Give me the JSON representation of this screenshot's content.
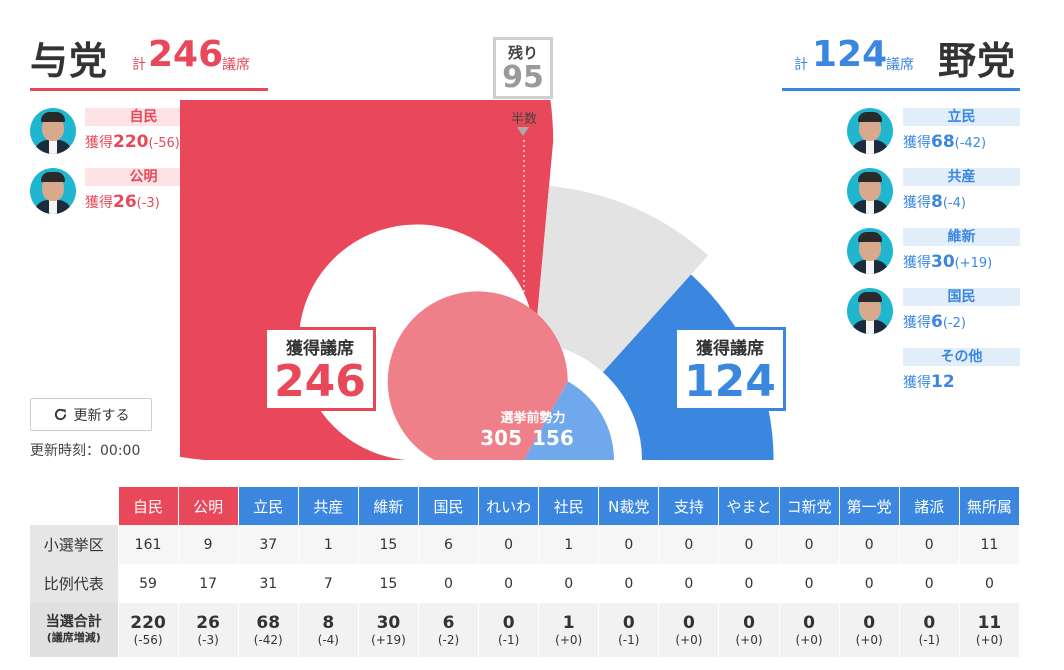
{
  "ruling": {
    "title": "与党",
    "kei": "計",
    "total": "246",
    "giseki": "議席",
    "parties": [
      {
        "name": "自民",
        "label": "獲得",
        "seats": "220",
        "diff": "(-56)"
      },
      {
        "name": "公明",
        "label": "獲得",
        "seats": "26",
        "diff": "(-3)"
      }
    ]
  },
  "opposition": {
    "title": "野党",
    "kei": "計",
    "total": "124",
    "giseki": "議席",
    "parties": [
      {
        "name": "立民",
        "label": "獲得",
        "seats": "68",
        "diff": "(-42)"
      },
      {
        "name": "共産",
        "label": "獲得",
        "seats": "8",
        "diff": "(-4)"
      },
      {
        "name": "維新",
        "label": "獲得",
        "seats": "30",
        "diff": "(+19)"
      },
      {
        "name": "国民",
        "label": "獲得",
        "seats": "6",
        "diff": "(-2)"
      },
      {
        "name": "その他",
        "label": "獲得",
        "seats": "12",
        "diff": ""
      }
    ]
  },
  "remaining": {
    "label": "残り",
    "value": "95"
  },
  "half_label": "半数",
  "seat_chart": {
    "total_seats": 465,
    "ruling_seats": 246,
    "opposition_seats": 124,
    "remaining_seats": 95,
    "ruling_color": "#e8485a",
    "opposition_color": "#3b87e0",
    "remaining_color": "#e3e3e3",
    "ruling_box": {
      "label": "獲得議席",
      "value": "246"
    },
    "opposition_box": {
      "label": "獲得議席",
      "value": "124"
    },
    "pre_election": {
      "label": "選挙前勢力",
      "ruling": "305",
      "opposition": "156"
    }
  },
  "update": {
    "button_label": "更新する",
    "time_label": "更新時刻：00:00"
  },
  "table": {
    "headers": [
      {
        "label": "自民",
        "side": "ruling"
      },
      {
        "label": "公明",
        "side": "ruling"
      },
      {
        "label": "立民",
        "side": "opposition"
      },
      {
        "label": "共産",
        "side": "opposition"
      },
      {
        "label": "維新",
        "side": "opposition"
      },
      {
        "label": "国民",
        "side": "opposition"
      },
      {
        "label": "れいわ",
        "side": "opposition"
      },
      {
        "label": "社民",
        "side": "opposition"
      },
      {
        "label": "N裁党",
        "side": "opposition"
      },
      {
        "label": "支持",
        "side": "opposition"
      },
      {
        "label": "やまと",
        "side": "opposition"
      },
      {
        "label": "コ新党",
        "side": "opposition"
      },
      {
        "label": "第一党",
        "side": "opposition"
      },
      {
        "label": "諸派",
        "side": "opposition"
      },
      {
        "label": "無所属",
        "side": "opposition"
      }
    ],
    "rows": [
      {
        "label": "小選挙区",
        "values": [
          "161",
          "9",
          "37",
          "1",
          "15",
          "6",
          "0",
          "1",
          "0",
          "0",
          "0",
          "0",
          "0",
          "0",
          "11"
        ]
      },
      {
        "label": "比例代表",
        "values": [
          "59",
          "17",
          "31",
          "7",
          "15",
          "0",
          "0",
          "0",
          "0",
          "0",
          "0",
          "0",
          "0",
          "0",
          "0"
        ]
      }
    ],
    "total_row": {
      "label": "当選合計",
      "sublabel": "(議席増減)",
      "values": [
        "220",
        "26",
        "68",
        "8",
        "30",
        "6",
        "0",
        "1",
        "0",
        "0",
        "0",
        "0",
        "0",
        "0",
        "11"
      ],
      "diffs": [
        "(-56)",
        "(-3)",
        "(-42)",
        "(-4)",
        "(+19)",
        "(-2)",
        "(-1)",
        "(+0)",
        "(-1)",
        "(+0)",
        "(+0)",
        "(+0)",
        "(+0)",
        "(-1)",
        "(+0)"
      ]
    }
  }
}
